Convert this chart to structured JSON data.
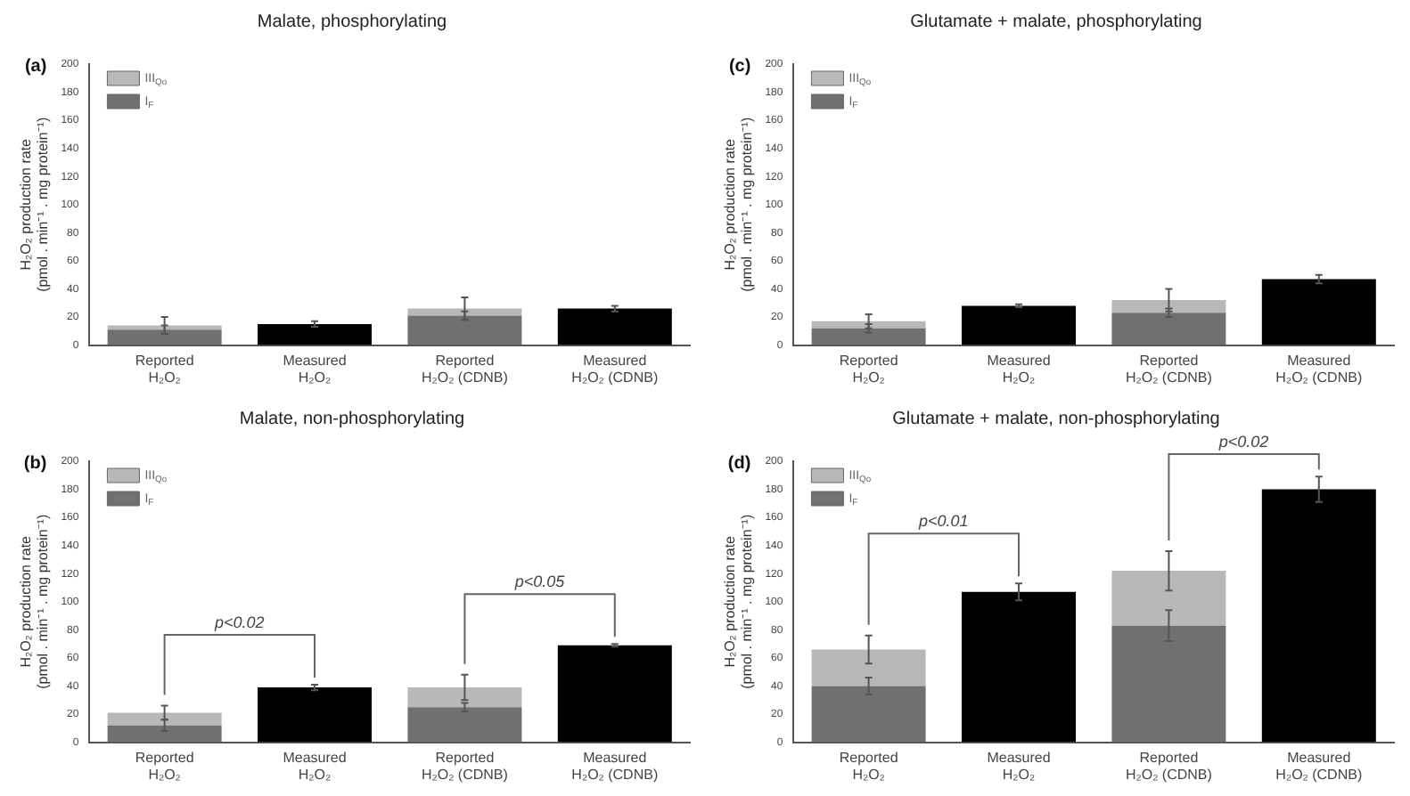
{
  "chart_data": [
    {
      "type": "bar",
      "stacked": true,
      "title": "Malate, phosphorylating",
      "ylabel": "H₂O₂ production rate\n(pmol . min⁻¹ . mg protein⁻¹)",
      "annotations": [
        "(a)"
      ],
      "categories": [
        "Reported\nH₂O₂",
        "Measured\nH₂O₂",
        "Reported\nH₂O₂ (CDNB)",
        "Measured\nH₂O₂ (CDNB)"
      ],
      "series": [
        {
          "name": "I$_{F}$",
          "color": "#707070",
          "values": [
            11,
            null,
            21,
            null
          ],
          "errors": [
            3,
            null,
            3,
            null
          ]
        },
        {
          "name": "III$_{Qo}$",
          "color": "#b8b8b8",
          "values": [
            3,
            null,
            5,
            null
          ],
          "errors": [
            6,
            null,
            8,
            null
          ]
        },
        {
          "color": "#000000",
          "values": [
            null,
            15,
            null,
            26
          ],
          "errors": [
            null,
            2,
            null,
            2
          ]
        }
      ],
      "ylim": [
        0,
        200
      ],
      "yticks": [
        0,
        20,
        40,
        60,
        80,
        100,
        120,
        140,
        160,
        180,
        200
      ],
      "grid": false,
      "legend": "top left"
    },
    {
      "type": "bar",
      "stacked": true,
      "title": "Glutamate + malate, phosphorylating",
      "ylabel": "H₂O₂ production rate\n(pmol . min⁻¹ . mg protein⁻¹)",
      "annotations": [
        "(c)"
      ],
      "categories": [
        "Reported\nH₂O₂",
        "Measured\nH₂O₂",
        "Reported\nH₂O₂ (CDNB)",
        "Measured\nH₂O₂ (CDNB)"
      ],
      "series": [
        {
          "name": "I$_{F}$",
          "color": "#707070",
          "values": [
            12,
            null,
            23,
            null
          ],
          "errors": [
            3,
            null,
            3,
            null
          ]
        },
        {
          "name": "III$_{Qo}$",
          "color": "#b8b8b8",
          "values": [
            5,
            null,
            9,
            null
          ],
          "errors": [
            5,
            null,
            8,
            null
          ]
        },
        {
          "color": "#000000",
          "values": [
            null,
            28,
            null,
            47
          ],
          "errors": [
            null,
            1,
            null,
            3
          ]
        }
      ],
      "ylim": [
        0,
        200
      ],
      "yticks": [
        0,
        20,
        40,
        60,
        80,
        100,
        120,
        140,
        160,
        180,
        200
      ],
      "grid": false,
      "legend": "top left"
    },
    {
      "type": "bar",
      "stacked": true,
      "title": "Malate, non-phosphorylating",
      "ylabel": "H₂O₂ production rate\n(pmol . min⁻¹ . mg protein⁻¹)",
      "annotations": [
        "(b)",
        "p<0.02",
        "p<0.05"
      ],
      "categories": [
        "Reported\nH₂O₂",
        "Measured\nH₂O₂",
        "Reported\nH₂O₂ (CDNB)",
        "Measured\nH₂O₂ (CDNB)"
      ],
      "series": [
        {
          "name": "I$_{F}$",
          "color": "#707070",
          "values": [
            12,
            null,
            25,
            null
          ],
          "errors": [
            4,
            null,
            3,
            null
          ]
        },
        {
          "name": "III$_{Qo}$",
          "color": "#b8b8b8",
          "values": [
            9,
            null,
            14,
            null
          ],
          "errors": [
            5,
            null,
            9,
            null
          ]
        },
        {
          "color": "#000000",
          "values": [
            null,
            39,
            null,
            69
          ],
          "errors": [
            null,
            2,
            null,
            1
          ]
        }
      ],
      "ylim": [
        0,
        200
      ],
      "yticks": [
        0,
        20,
        40,
        60,
        80,
        100,
        120,
        140,
        160,
        180,
        200
      ],
      "grid": false,
      "legend": "top left"
    },
    {
      "type": "bar",
      "stacked": true,
      "title": "Glutamate + malate, non-phosphorylating",
      "ylabel": "H₂O₂ production rate\n(pmol . min⁻¹ . mg protein⁻¹)",
      "annotations": [
        "(d)",
        "p<0.01",
        "p<0.02"
      ],
      "categories": [
        "Reported\nH₂O₂",
        "Measured\nH₂O₂",
        "Reported\nH₂O₂ (CDNB)",
        "Measured\nH₂O₂ (CDNB)"
      ],
      "series": [
        {
          "name": "I$_{F}$",
          "color": "#707070",
          "values": [
            40,
            null,
            83,
            null
          ],
          "errors": [
            6,
            null,
            11,
            null
          ]
        },
        {
          "name": "III$_{Qo}$",
          "color": "#b8b8b8",
          "values": [
            26,
            null,
            39,
            null
          ],
          "errors": [
            10,
            null,
            14,
            null
          ]
        },
        {
          "color": "#000000",
          "values": [
            null,
            107,
            null,
            180
          ],
          "errors": [
            null,
            6,
            null,
            9
          ]
        }
      ],
      "ylim": [
        0,
        200
      ],
      "yticks": [
        0,
        20,
        40,
        60,
        80,
        100,
        120,
        140,
        160,
        180,
        200
      ],
      "grid": false,
      "legend": "top left"
    }
  ]
}
